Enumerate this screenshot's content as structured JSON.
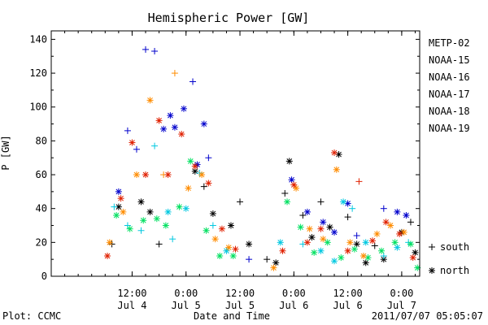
{
  "chart_data": {
    "type": "scatter",
    "title": "Hemispheric Power [GW]",
    "ylabel": "P [GW]",
    "xlabel": "Date and Time",
    "xlim": [
      "2011-07-03T18:00",
      "2011-07-07T04:00"
    ],
    "ylim": [
      0,
      145
    ],
    "yticks": [
      0,
      20,
      40,
      60,
      80,
      100,
      120,
      140
    ],
    "xticks": [
      {
        "t": "2011-07-04T12:00",
        "time": "12:00",
        "date": "Jul 4"
      },
      {
        "t": "2011-07-05T00:00",
        "time": "0:00",
        "date": "Jul 5"
      },
      {
        "t": "2011-07-05T12:00",
        "time": "12:00",
        "date": "Jul 5"
      },
      {
        "t": "2011-07-06T00:00",
        "time": "0:00",
        "date": "Jul 6"
      },
      {
        "t": "2011-07-06T12:00",
        "time": "12:00",
        "date": "Jul 6"
      },
      {
        "t": "2011-07-07T00:00",
        "time": "0:00",
        "date": "Jul 7"
      }
    ],
    "marker_legend": [
      {
        "symbol": "+",
        "label": "south"
      },
      {
        "symbol": "*",
        "label": "north"
      }
    ],
    "series": [
      {
        "name": "METP-02",
        "color": "#000000",
        "points": [
          [
            "2011-07-04T07:30",
            19,
            "+"
          ],
          [
            "2011-07-04T09:00",
            41,
            "*"
          ],
          [
            "2011-07-04T14:00",
            44,
            "*"
          ],
          [
            "2011-07-04T16:00",
            38,
            "*"
          ],
          [
            "2011-07-04T18:00",
            19,
            "+"
          ],
          [
            "2011-07-05T02:00",
            62,
            "*"
          ],
          [
            "2011-07-05T04:00",
            53,
            "+"
          ],
          [
            "2011-07-05T06:00",
            37,
            "*"
          ],
          [
            "2011-07-05T10:00",
            30,
            "*"
          ],
          [
            "2011-07-05T12:00",
            44,
            "+"
          ],
          [
            "2011-07-05T14:00",
            19,
            "*"
          ],
          [
            "2011-07-05T18:00",
            10,
            "+"
          ],
          [
            "2011-07-05T20:00",
            8,
            "*"
          ],
          [
            "2011-07-05T22:00",
            49,
            "+"
          ],
          [
            "2011-07-05T23:00",
            68,
            "*"
          ],
          [
            "2011-07-06T02:00",
            36,
            "+"
          ],
          [
            "2011-07-06T04:00",
            23,
            "*"
          ],
          [
            "2011-07-06T06:00",
            44,
            "+"
          ],
          [
            "2011-07-06T08:00",
            29,
            "*"
          ],
          [
            "2011-07-06T10:00",
            72,
            "*"
          ],
          [
            "2011-07-06T12:00",
            35,
            "+"
          ],
          [
            "2011-07-06T14:00",
            19,
            "*"
          ],
          [
            "2011-07-06T16:00",
            8,
            "*"
          ],
          [
            "2011-07-06T18:00",
            18,
            "+"
          ],
          [
            "2011-07-06T20:00",
            10,
            "*"
          ],
          [
            "2011-07-07T00:00",
            26,
            "*"
          ],
          [
            "2011-07-07T02:00",
            32,
            "+"
          ],
          [
            "2011-07-07T03:00",
            14,
            "*"
          ]
        ]
      },
      {
        "name": "NOAA-15",
        "color": "#0000cc",
        "points": [
          [
            "2011-07-04T09:00",
            50,
            "*"
          ],
          [
            "2011-07-04T11:00",
            86,
            "+"
          ],
          [
            "2011-07-04T13:00",
            75,
            "+"
          ],
          [
            "2011-07-04T15:00",
            134,
            "+"
          ],
          [
            "2011-07-04T17:00",
            133,
            "+"
          ],
          [
            "2011-07-04T19:00",
            87,
            "*"
          ],
          [
            "2011-07-04T20:30",
            95,
            "*"
          ],
          [
            "2011-07-04T21:30",
            88,
            "*"
          ],
          [
            "2011-07-04T23:30",
            99,
            "*"
          ],
          [
            "2011-07-05T01:30",
            115,
            "+"
          ],
          [
            "2011-07-05T02:30",
            66,
            "*"
          ],
          [
            "2011-07-05T04:00",
            90,
            "*"
          ],
          [
            "2011-07-05T05:00",
            70,
            "+"
          ],
          [
            "2011-07-05T14:00",
            10,
            "+"
          ],
          [
            "2011-07-05T23:30",
            57,
            "*"
          ],
          [
            "2011-07-06T03:00",
            38,
            "*"
          ],
          [
            "2011-07-06T06:30",
            32,
            "*"
          ],
          [
            "2011-07-06T09:00",
            26,
            "*"
          ],
          [
            "2011-07-06T12:00",
            43,
            "*"
          ],
          [
            "2011-07-06T14:00",
            24,
            "+"
          ],
          [
            "2011-07-06T20:00",
            40,
            "+"
          ],
          [
            "2011-07-06T23:00",
            38,
            "*"
          ],
          [
            "2011-07-07T01:00",
            36,
            "*"
          ]
        ]
      },
      {
        "name": "NOAA-16",
        "color": "#00c8e0",
        "points": [
          [
            "2011-07-04T08:00",
            41,
            "+"
          ],
          [
            "2011-07-04T11:00",
            30,
            "+"
          ],
          [
            "2011-07-04T14:00",
            27,
            "+"
          ],
          [
            "2011-07-04T17:00",
            77,
            "+"
          ],
          [
            "2011-07-04T20:00",
            38,
            "*"
          ],
          [
            "2011-07-04T21:00",
            22,
            "+"
          ],
          [
            "2011-07-05T00:00",
            40,
            "*"
          ],
          [
            "2011-07-05T03:00",
            61,
            "+"
          ],
          [
            "2011-07-05T06:00",
            30,
            "+"
          ],
          [
            "2011-07-05T09:00",
            15,
            "*"
          ],
          [
            "2011-07-05T21:00",
            20,
            "*"
          ],
          [
            "2011-07-06T02:00",
            19,
            "+"
          ],
          [
            "2011-07-06T06:00",
            15,
            "*"
          ],
          [
            "2011-07-06T09:00",
            9,
            "*"
          ],
          [
            "2011-07-06T11:00",
            44,
            "*"
          ],
          [
            "2011-07-06T13:00",
            40,
            "+"
          ],
          [
            "2011-07-06T16:00",
            20,
            "*"
          ],
          [
            "2011-07-06T20:00",
            12,
            "+"
          ],
          [
            "2011-07-06T23:00",
            17,
            "*"
          ],
          [
            "2011-07-07T01:30",
            20,
            "+"
          ]
        ]
      },
      {
        "name": "NOAA-17",
        "color": "#00e060",
        "points": [
          [
            "2011-07-04T08:30",
            36,
            "*"
          ],
          [
            "2011-07-04T11:30",
            28,
            "*"
          ],
          [
            "2011-07-04T14:30",
            33,
            "*"
          ],
          [
            "2011-07-04T17:30",
            34,
            "*"
          ],
          [
            "2011-07-04T19:30",
            30,
            "*"
          ],
          [
            "2011-07-04T22:30",
            41,
            "*"
          ],
          [
            "2011-07-05T01:00",
            68,
            "*"
          ],
          [
            "2011-07-05T04:30",
            27,
            "*"
          ],
          [
            "2011-07-05T07:30",
            12,
            "*"
          ],
          [
            "2011-07-05T10:30",
            12,
            "*"
          ],
          [
            "2011-07-05T22:30",
            44,
            "*"
          ],
          [
            "2011-07-06T01:30",
            29,
            "*"
          ],
          [
            "2011-07-06T04:30",
            14,
            "*"
          ],
          [
            "2011-07-06T07:30",
            20,
            "*"
          ],
          [
            "2011-07-06T10:30",
            11,
            "*"
          ],
          [
            "2011-07-06T13:30",
            16,
            "*"
          ],
          [
            "2011-07-06T16:30",
            11,
            "*"
          ],
          [
            "2011-07-06T19:30",
            15,
            "*"
          ],
          [
            "2011-07-06T22:30",
            20,
            "*"
          ],
          [
            "2011-07-07T02:00",
            19,
            "*"
          ],
          [
            "2011-07-07T03:30",
            5,
            "*"
          ]
        ]
      },
      {
        "name": "NOAA-18",
        "color": "#ff8c00",
        "points": [
          [
            "2011-07-04T07:00",
            20,
            "*"
          ],
          [
            "2011-07-04T10:00",
            38,
            "*"
          ],
          [
            "2011-07-04T13:00",
            60,
            "*"
          ],
          [
            "2011-07-04T16:00",
            104,
            "*"
          ],
          [
            "2011-07-04T19:00",
            60,
            "+"
          ],
          [
            "2011-07-04T21:30",
            120,
            "+"
          ],
          [
            "2011-07-05T00:30",
            52,
            "*"
          ],
          [
            "2011-07-05T03:30",
            60,
            "*"
          ],
          [
            "2011-07-05T06:30",
            22,
            "*"
          ],
          [
            "2011-07-05T09:30",
            17,
            "*"
          ],
          [
            "2011-07-05T19:30",
            5,
            "*"
          ],
          [
            "2011-07-06T00:30",
            52,
            "*"
          ],
          [
            "2011-07-06T03:30",
            28,
            "*"
          ],
          [
            "2011-07-06T06:30",
            22,
            "*"
          ],
          [
            "2011-07-06T09:30",
            63,
            "*"
          ],
          [
            "2011-07-06T12:30",
            20,
            "*"
          ],
          [
            "2011-07-06T15:30",
            12,
            "*"
          ],
          [
            "2011-07-06T18:30",
            25,
            "*"
          ],
          [
            "2011-07-06T21:30",
            30,
            "*"
          ],
          [
            "2011-07-07T00:30",
            26,
            "*"
          ]
        ]
      },
      {
        "name": "NOAA-19",
        "color": "#e02000",
        "points": [
          [
            "2011-07-04T06:30",
            12,
            "*"
          ],
          [
            "2011-07-04T09:30",
            46,
            "*"
          ],
          [
            "2011-07-04T12:00",
            79,
            "*"
          ],
          [
            "2011-07-04T15:00",
            60,
            "*"
          ],
          [
            "2011-07-04T18:00",
            92,
            "*"
          ],
          [
            "2011-07-04T20:00",
            60,
            "*"
          ],
          [
            "2011-07-04T23:00",
            84,
            "*"
          ],
          [
            "2011-07-05T02:00",
            65,
            "*"
          ],
          [
            "2011-07-05T05:00",
            55,
            "*"
          ],
          [
            "2011-07-05T08:00",
            28,
            "*"
          ],
          [
            "2011-07-05T11:00",
            16,
            "*"
          ],
          [
            "2011-07-05T21:30",
            15,
            "*"
          ],
          [
            "2011-07-06T00:00",
            54,
            "*"
          ],
          [
            "2011-07-06T03:00",
            20,
            "*"
          ],
          [
            "2011-07-06T06:00",
            28,
            "*"
          ],
          [
            "2011-07-06T09:00",
            73,
            "*"
          ],
          [
            "2011-07-06T12:00",
            15,
            "*"
          ],
          [
            "2011-07-06T14:30",
            56,
            "+"
          ],
          [
            "2011-07-06T17:30",
            21,
            "*"
          ],
          [
            "2011-07-06T20:30",
            32,
            "*"
          ],
          [
            "2011-07-06T23:30",
            25,
            "*"
          ],
          [
            "2011-07-07T02:30",
            11,
            "*"
          ]
        ]
      }
    ]
  },
  "footer": {
    "plot_credit": "Plot: CCMC",
    "timestamp": "2011/07/07 05:05:07"
  }
}
